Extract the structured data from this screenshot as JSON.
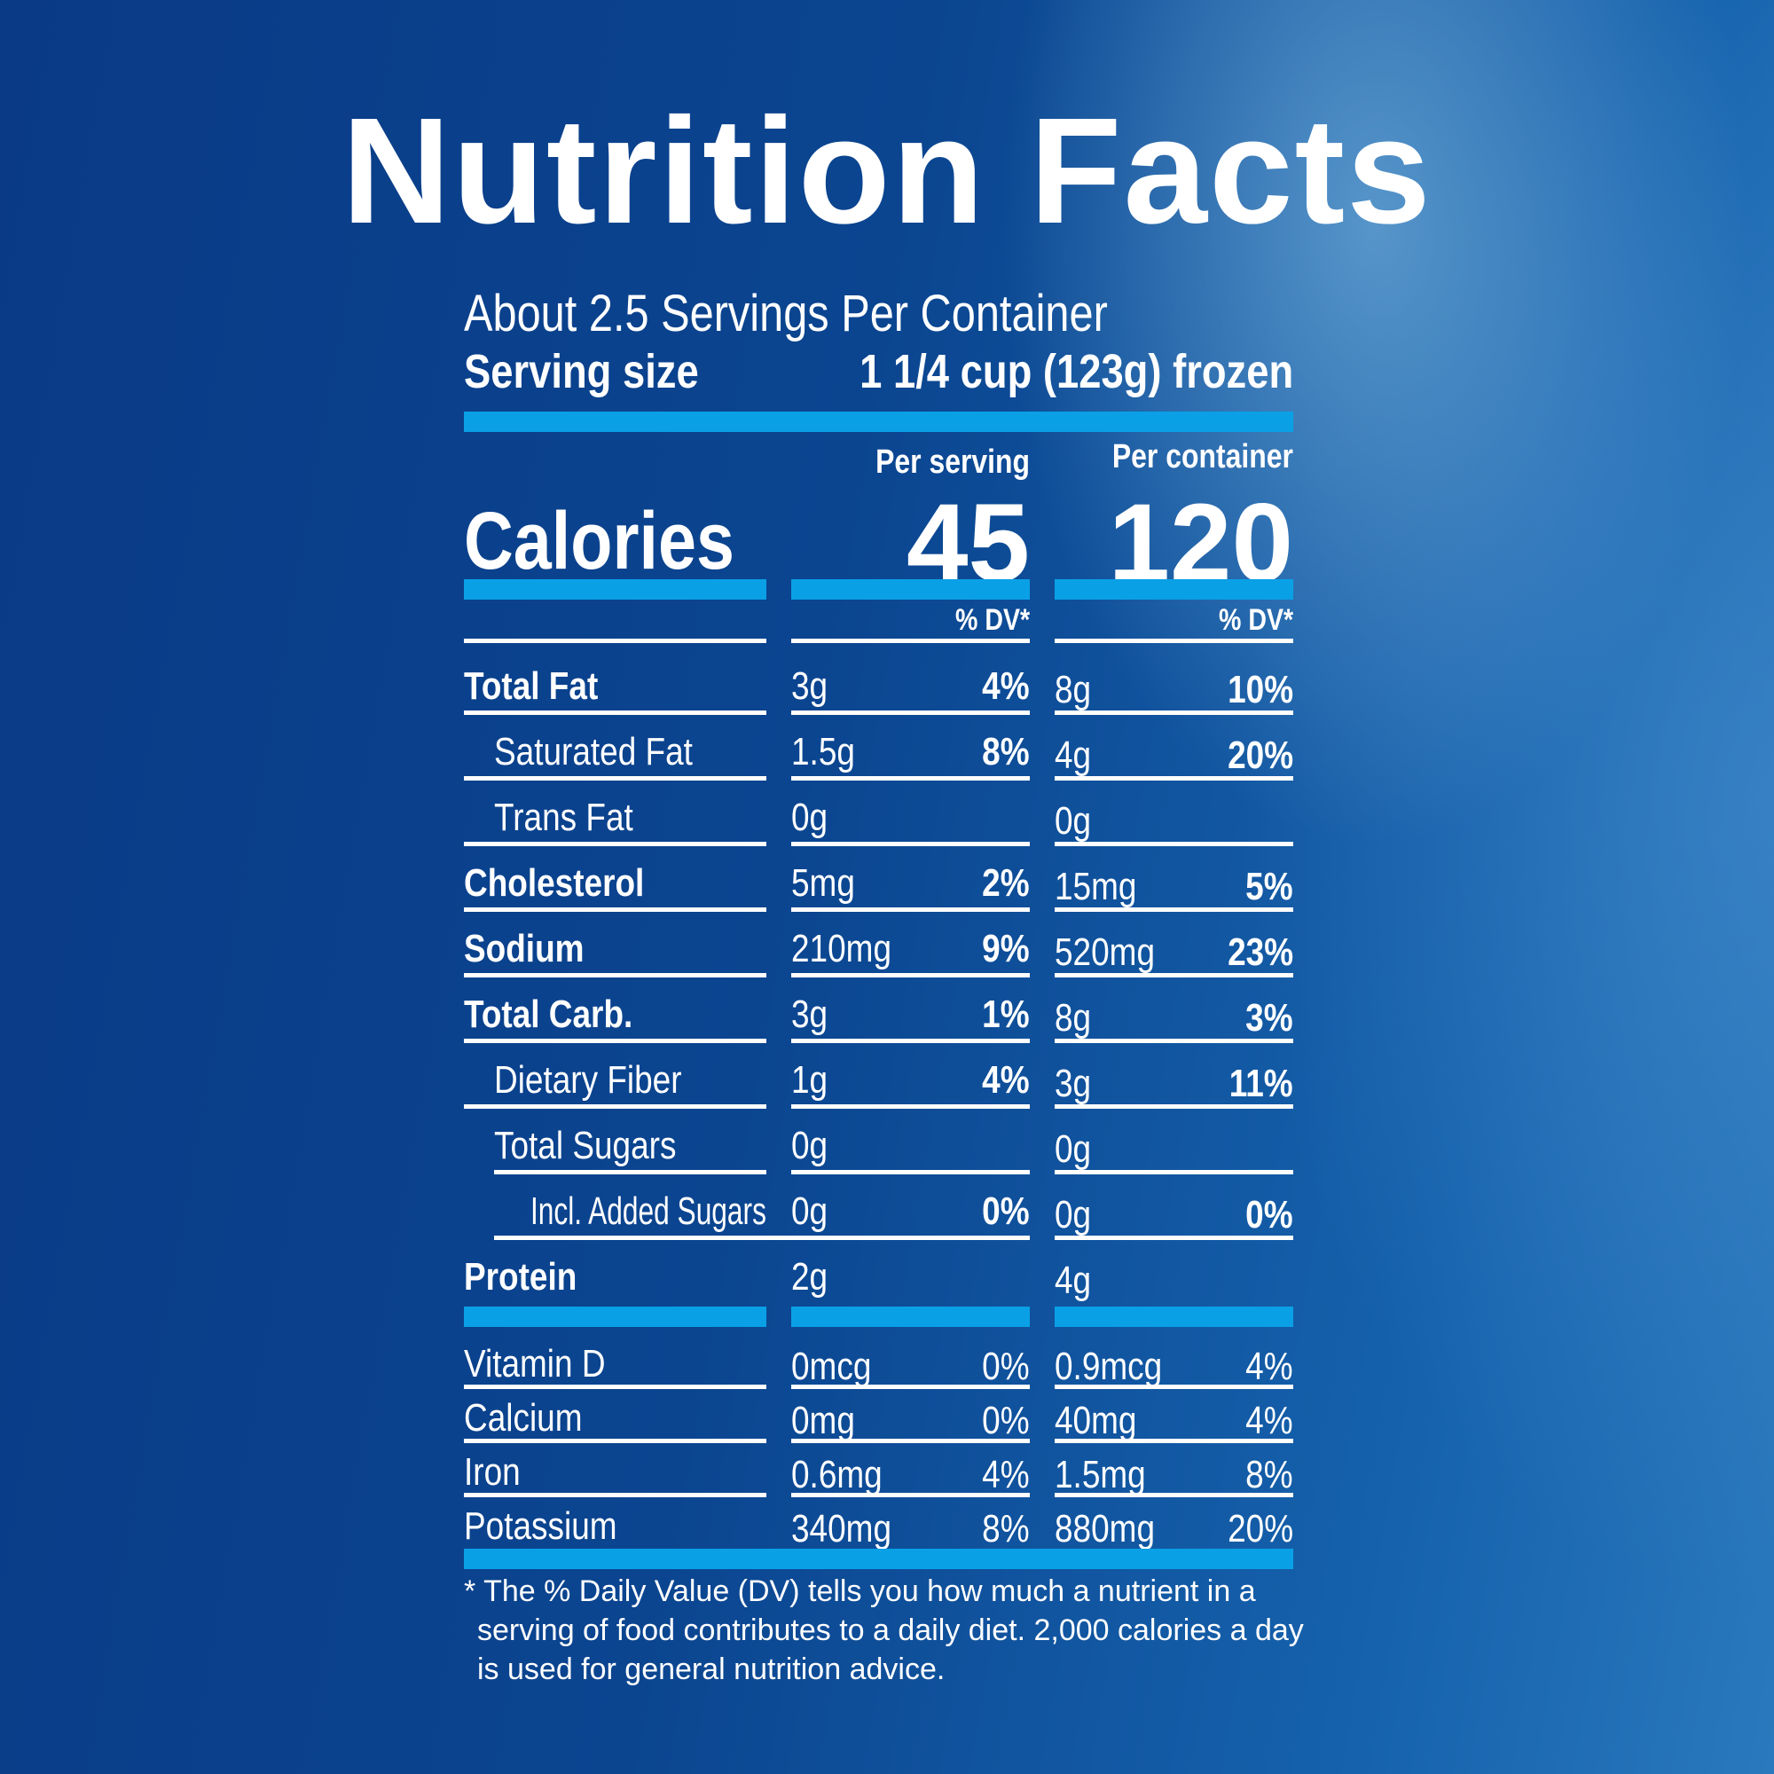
{
  "title": "Nutrition Facts",
  "servings_per_container": "About 2.5 Servings Per Container",
  "serving_size_label": "Serving size",
  "serving_size_value": "1 1/4 cup (123g) frozen",
  "calories_label": "Calories",
  "per_serving_label": "Per serving",
  "per_container_label": "Per container",
  "calories_per_serving": "45",
  "calories_per_container": "120",
  "dv_label": "% DV*",
  "nutrients": [
    {
      "name": "Total Fat",
      "bold": true,
      "indent": 0,
      "s_amt": "3g",
      "s_dv": "4%",
      "c_amt": "8g",
      "c_dv": "10%"
    },
    {
      "name": "Saturated Fat",
      "bold": false,
      "indent": 1,
      "s_amt": "1.5g",
      "s_dv": "8%",
      "c_amt": "4g",
      "c_dv": "20%"
    },
    {
      "name": "Trans Fat",
      "bold": false,
      "indent": 1,
      "s_amt": "0g",
      "s_dv": "",
      "c_amt": "0g",
      "c_dv": ""
    },
    {
      "name": "Cholesterol",
      "bold": true,
      "indent": 0,
      "s_amt": "5mg",
      "s_dv": "2%",
      "c_amt": "15mg",
      "c_dv": "5%"
    },
    {
      "name": "Sodium",
      "bold": true,
      "indent": 0,
      "s_amt": "210mg",
      "s_dv": "9%",
      "c_amt": "520mg",
      "c_dv": "23%"
    },
    {
      "name": "Total Carb.",
      "bold": true,
      "indent": 0,
      "s_amt": "3g",
      "s_dv": "1%",
      "c_amt": "8g",
      "c_dv": "3%"
    },
    {
      "name": "Dietary Fiber",
      "bold": false,
      "indent": 1,
      "s_amt": "1g",
      "s_dv": "4%",
      "c_amt": "3g",
      "c_dv": "11%"
    },
    {
      "name": "Total Sugars",
      "bold": false,
      "indent": 1,
      "s_amt": "0g",
      "s_dv": "",
      "c_amt": "0g",
      "c_dv": ""
    },
    {
      "name": "Incl. Added Sugars",
      "bold": false,
      "indent": 2,
      "s_amt": "0g",
      "s_dv": "0%",
      "c_amt": "0g",
      "c_dv": "0%"
    },
    {
      "name": "Protein",
      "bold": true,
      "indent": 0,
      "s_amt": "2g",
      "s_dv": "",
      "c_amt": "4g",
      "c_dv": ""
    }
  ],
  "vitamins": [
    {
      "name": "Vitamin D",
      "s_amt": "0mcg",
      "s_dv": "0%",
      "c_amt": "0.9mcg",
      "c_dv": "4%"
    },
    {
      "name": "Calcium",
      "s_amt": "0mg",
      "s_dv": "0%",
      "c_amt": "40mg",
      "c_dv": "4%"
    },
    {
      "name": "Iron",
      "s_amt": "0.6mg",
      "s_dv": "4%",
      "c_amt": "1.5mg",
      "c_dv": "8%"
    },
    {
      "name": "Potassium",
      "s_amt": "340mg",
      "s_dv": "8%",
      "c_amt": "880mg",
      "c_dv": "20%"
    }
  ],
  "footnote": [
    "* The % Daily Value (DV) tells you how much a nutrient in a",
    "serving of food contributes to a daily diet. 2,000 calories a day",
    "is used for general nutrition advice."
  ],
  "colors": {
    "accent_bar": "#0aa0e6",
    "background": "#0b4590"
  }
}
